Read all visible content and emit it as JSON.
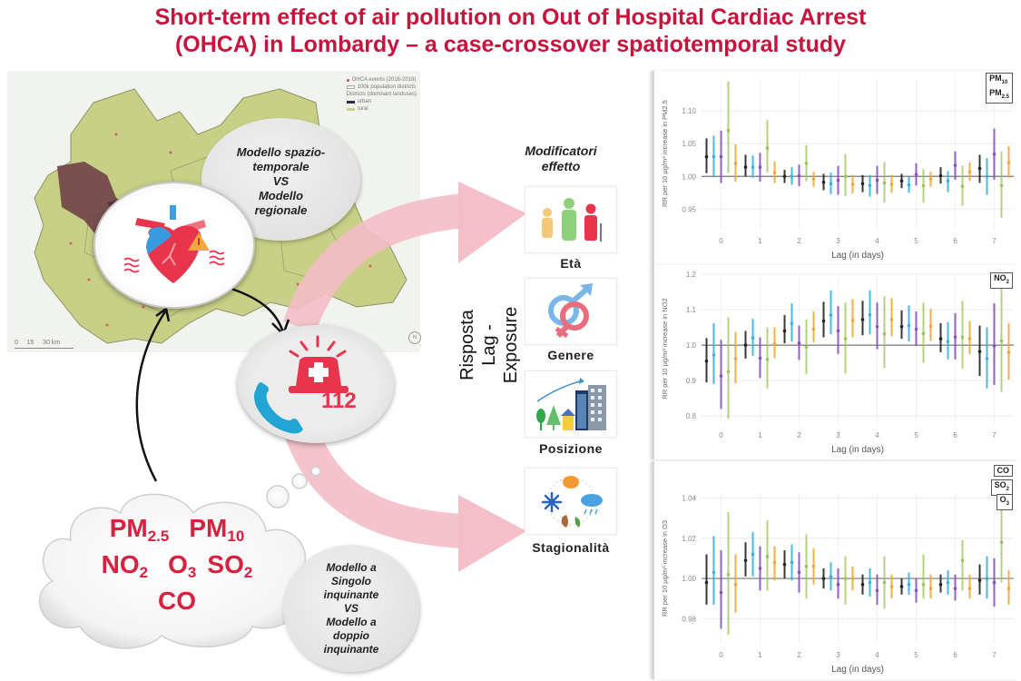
{
  "title": {
    "line1": "Short-term effect of air pollution on Out of Hospital Cardiac Arrest",
    "line2": "(OHCA) in Lombardy – a case-crossover spatiotemporal study"
  },
  "map": {
    "legend": {
      "events": "OHCA events (2016-2019)",
      "districts": "100k population districts",
      "landuse_title": "Districts (dominant landuses)",
      "urban": "urban",
      "rural": "rural"
    },
    "scale": {
      "labels": [
        "0",
        "15",
        "30 km"
      ]
    },
    "north": "N",
    "colors": {
      "rural": "#c8cf86",
      "urban": "#2e2f3b",
      "events": "#d8485a",
      "background": "#f1f3ef"
    }
  },
  "bubbles": {
    "model_comparison": [
      "Modello spazio-",
      "temporale",
      "VS",
      "Modello",
      "regionale"
    ],
    "pollutant_model": [
      "Modello a",
      "Singolo",
      "inquinante",
      "VS",
      "Modello a",
      "doppio",
      "inquinante"
    ]
  },
  "icons": {
    "heart": "heart-attack-icon",
    "emergency": "emergency-siren-phone-icon",
    "emergency_number": "112"
  },
  "pollutants": {
    "row1": [
      {
        "base": "PM",
        "sub": "2.5"
      },
      {
        "base": "PM",
        "sub": "10"
      }
    ],
    "row2": [
      {
        "base": "NO",
        "sub": "2"
      },
      {
        "base": "O",
        "sub": "3"
      },
      {
        "base": "SO",
        "sub": "2"
      }
    ],
    "row3": [
      {
        "base": "CO",
        "sub": ""
      }
    ]
  },
  "response_label": {
    "line1": "Risposta",
    "line2": "Lag - Exposure"
  },
  "modifiers": {
    "title_line1": "Modificatori",
    "title_line2": "effetto",
    "items": [
      {
        "label": "Età",
        "icon": "age-groups-icon"
      },
      {
        "label": "Genere",
        "icon": "gender-icon"
      },
      {
        "label": "Posizione",
        "icon": "urban-rural-location-icon"
      },
      {
        "label": "Stagionalità",
        "icon": "seasons-icon"
      }
    ]
  },
  "accent": {
    "title_red": "#c8143c",
    "pollutant_red": "#d8203f",
    "arrow_pink": "#f3bcc6"
  },
  "chart_data": [
    {
      "type": "scatter",
      "subtype": "point-range (error bars)",
      "title": "",
      "panel_tags": [
        "PM10",
        "PM2.5"
      ],
      "xlabel": "Lag (in days)",
      "ylabel": "RR per 10 μg/m³ increase in PM2.5",
      "x": [
        0,
        1,
        2,
        3,
        4,
        5,
        6,
        7
      ],
      "ylim": [
        0.92,
        1.15
      ],
      "yticks": [
        0.95,
        1.0,
        1.05,
        1.1
      ],
      "reference_line": 1.0,
      "grid": true,
      "series": [
        {
          "name": "series-black",
          "color": "#222222",
          "values": [
            1.03,
            1.014,
            1.0,
            0.991,
            0.989,
            0.993,
            1.001,
            1.012
          ],
          "lower": [
            1.005,
            1.0,
            0.99,
            0.979,
            0.976,
            0.982,
            0.989,
            0.99
          ],
          "upper": [
            1.058,
            1.033,
            1.01,
            1.004,
            1.002,
            1.004,
            1.014,
            1.033
          ]
        },
        {
          "name": "series-lightblue",
          "color": "#39b0e0",
          "values": [
            1.03,
            1.014,
            1.0,
            0.989,
            0.986,
            0.987,
            0.993,
            1.0
          ],
          "lower": [
            1.0,
            0.998,
            0.987,
            0.973,
            0.969,
            0.975,
            0.976,
            0.972
          ],
          "upper": [
            1.062,
            1.032,
            1.014,
            1.006,
            1.002,
            1.0,
            1.008,
            1.028
          ]
        },
        {
          "name": "series-purple",
          "color": "#8a4fc2",
          "values": [
            1.03,
            1.014,
            1.001,
            0.994,
            0.994,
            1.003,
            1.017,
            1.034
          ],
          "lower": [
            0.99,
            0.992,
            0.985,
            0.972,
            0.973,
            0.986,
            0.995,
            0.995
          ],
          "upper": [
            1.07,
            1.036,
            1.018,
            1.016,
            1.016,
            1.02,
            1.038,
            1.073
          ]
        },
        {
          "name": "series-green",
          "color": "#9ac25a",
          "values": [
            1.07,
            1.043,
            1.02,
            1.0,
            0.99,
            0.986,
            0.985,
            0.986
          ],
          "lower": [
            1.005,
            1.006,
            0.993,
            0.97,
            0.96,
            0.96,
            0.955,
            0.937
          ],
          "upper": [
            1.145,
            1.086,
            1.048,
            1.034,
            1.022,
            1.011,
            1.016,
            1.038
          ]
        },
        {
          "name": "series-orange",
          "color": "#f0a830",
          "values": [
            1.02,
            1.006,
            0.996,
            0.988,
            0.988,
            0.996,
            1.007,
            1.021
          ],
          "lower": [
            0.992,
            0.99,
            0.984,
            0.974,
            0.975,
            0.984,
            0.993,
            0.998
          ],
          "upper": [
            1.049,
            1.023,
            1.007,
            1.002,
            1.002,
            1.007,
            1.021,
            1.046
          ]
        }
      ]
    },
    {
      "type": "scatter",
      "subtype": "point-range (error bars)",
      "title": "",
      "panel_tags": [
        "NO2"
      ],
      "xlabel": "Lag (in days)",
      "ylabel": "RR per 10 μg/m³ increase in NO2",
      "x": [
        0,
        1,
        2,
        3,
        4,
        5,
        6,
        7
      ],
      "ylim": [
        0.78,
        1.2
      ],
      "yticks": [
        0.8,
        0.9,
        1.0,
        1.1,
        1.2
      ],
      "reference_line": 1.0,
      "grid": true,
      "series": [
        {
          "name": "series-black",
          "color": "#222222",
          "values": [
            0.955,
            1.0,
            1.04,
            1.068,
            1.072,
            1.052,
            1.018,
            0.982
          ],
          "lower": [
            0.895,
            0.962,
            1.005,
            1.022,
            1.028,
            1.018,
            0.98,
            0.913
          ],
          "upper": [
            1.02,
            1.04,
            1.085,
            1.122,
            1.125,
            1.098,
            1.062,
            1.055
          ]
        },
        {
          "name": "series-lightblue",
          "color": "#39b0e0",
          "values": [
            0.972,
            1.02,
            1.061,
            1.085,
            1.085,
            1.055,
            1.01,
            0.962
          ],
          "lower": [
            0.89,
            0.97,
            1.01,
            1.03,
            1.03,
            1.01,
            0.96,
            0.878
          ],
          "upper": [
            1.062,
            1.074,
            1.118,
            1.155,
            1.155,
            1.112,
            1.065,
            1.05
          ]
        },
        {
          "name": "series-purple",
          "color": "#8a4fc2",
          "values": [
            0.913,
            0.963,
            1.006,
            1.04,
            1.052,
            1.045,
            1.023,
            0.998
          ],
          "lower": [
            0.82,
            0.907,
            0.958,
            0.975,
            0.988,
            0.998,
            0.96,
            0.888
          ],
          "upper": [
            1.015,
            1.022,
            1.055,
            1.11,
            1.12,
            1.095,
            1.09,
            1.118
          ]
        },
        {
          "name": "series-green",
          "color": "#9ac25a",
          "values": [
            0.925,
            0.96,
            0.995,
            1.018,
            1.032,
            1.033,
            1.022,
            1.012
          ],
          "lower": [
            0.792,
            0.878,
            0.918,
            0.92,
            0.935,
            0.95,
            0.933,
            0.868
          ],
          "upper": [
            1.078,
            1.05,
            1.073,
            1.12,
            1.138,
            1.12,
            1.125,
            1.17
          ]
        },
        {
          "name": "series-orange",
          "color": "#f0a830",
          "values": [
            0.962,
            1.003,
            1.045,
            1.07,
            1.072,
            1.053,
            1.018,
            0.98
          ],
          "lower": [
            0.892,
            0.963,
            1.008,
            1.022,
            1.025,
            1.012,
            0.975,
            0.903
          ],
          "upper": [
            1.037,
            1.05,
            1.095,
            1.13,
            1.132,
            1.102,
            1.068,
            1.062
          ]
        }
      ]
    },
    {
      "type": "scatter",
      "subtype": "point-range (error bars)",
      "title": "",
      "panel_tags": [
        "CO",
        "SO2",
        "O3"
      ],
      "xlabel": "Lag (in days)",
      "ylabel": "RR per 10 μg/m³ increase in O3",
      "x": [
        0,
        1,
        2,
        3,
        4,
        5,
        6,
        7
      ],
      "ylim": [
        0.968,
        1.042
      ],
      "yticks": [
        0.98,
        1.0,
        1.02,
        1.04
      ],
      "reference_line": 1.0,
      "grid": true,
      "series": [
        {
          "name": "series-black",
          "color": "#222222",
          "values": [
            0.998,
            1.009,
            1.007,
            1.0,
            0.997,
            0.996,
            0.997,
            0.999
          ],
          "lower": [
            0.987,
            1.001,
            1.0,
            0.995,
            0.992,
            0.992,
            0.993,
            0.992
          ],
          "upper": [
            1.012,
            1.018,
            1.014,
            1.005,
            1.002,
            1.0,
            1.002,
            1.007
          ]
        },
        {
          "name": "series-lightblue",
          "color": "#39b0e0",
          "values": [
            1.003,
            1.012,
            1.008,
            1.001,
            0.998,
            0.997,
            0.998,
            1.0
          ],
          "lower": [
            0.987,
            1.001,
            0.999,
            0.994,
            0.991,
            0.992,
            0.992,
            0.99
          ],
          "upper": [
            1.021,
            1.023,
            1.017,
            1.008,
            1.005,
            1.003,
            1.004,
            1.011
          ]
        },
        {
          "name": "series-purple",
          "color": "#8a4fc2",
          "values": [
            0.993,
            1.005,
            1.003,
            0.997,
            0.994,
            0.994,
            0.995,
            0.998
          ],
          "lower": [
            0.975,
            0.994,
            0.993,
            0.99,
            0.987,
            0.988,
            0.989,
            0.986
          ],
          "upper": [
            1.014,
            1.016,
            1.013,
            1.005,
            1.002,
            1.0,
            1.002,
            1.01
          ]
        },
        {
          "name": "series-green",
          "color": "#9ac25a",
          "values": [
            1.002,
            1.011,
            1.006,
            1.0,
            0.998,
            0.997,
            1.009,
            1.018
          ],
          "lower": [
            0.972,
            0.994,
            0.99,
            0.987,
            0.985,
            0.99,
            0.994,
            0.998
          ],
          "upper": [
            1.033,
            1.029,
            1.022,
            1.011,
            1.011,
            1.012,
            1.019,
            1.038
          ]
        },
        {
          "name": "series-orange",
          "color": "#f0a830",
          "values": [
            0.997,
            1.008,
            1.006,
            1.0,
            0.996,
            0.995,
            0.995,
            0.995
          ],
          "lower": [
            0.983,
            0.999,
            0.997,
            0.994,
            0.99,
            0.99,
            0.99,
            0.987
          ],
          "upper": [
            1.012,
            1.016,
            1.015,
            1.006,
            1.002,
            1.002,
            1.002,
            1.004
          ]
        }
      ]
    }
  ]
}
